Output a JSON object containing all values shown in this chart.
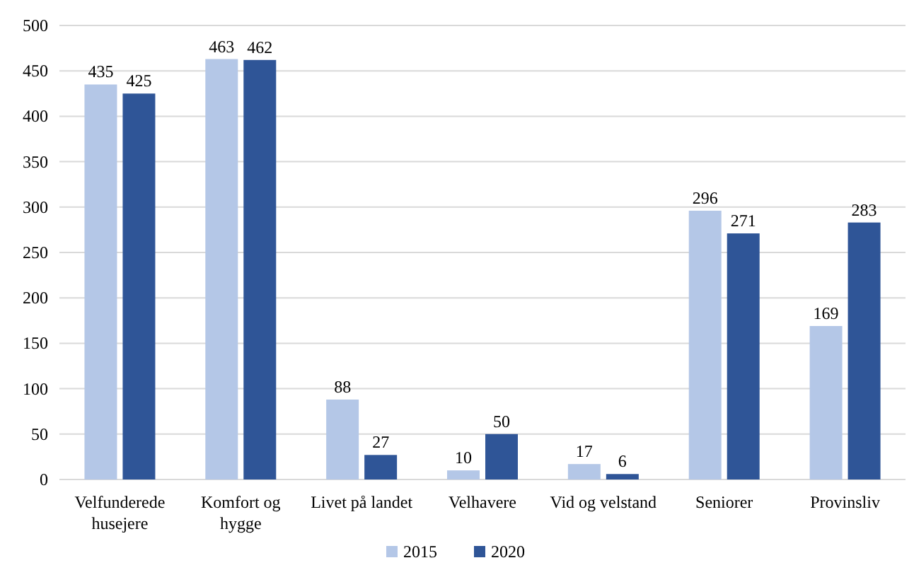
{
  "chart_data": {
    "type": "bar",
    "categories": [
      "Velfunderede husejere",
      "Komfort og hygge",
      "Livet på landet",
      "Velhavere",
      "Vid og velstand",
      "Seniorer",
      "Provinsliv"
    ],
    "series": [
      {
        "name": "2015",
        "color": "#b4c7e7",
        "values": [
          435,
          463,
          88,
          10,
          17,
          296,
          169
        ]
      },
      {
        "name": "2020",
        "color": "#2f5597",
        "values": [
          425,
          462,
          27,
          50,
          6,
          271,
          283
        ]
      }
    ],
    "ylim": [
      0,
      500
    ],
    "yticks": [
      0,
      50,
      100,
      150,
      200,
      250,
      300,
      350,
      400,
      450,
      500
    ],
    "grid": "y",
    "data_labels": true,
    "legend": "bottom"
  }
}
